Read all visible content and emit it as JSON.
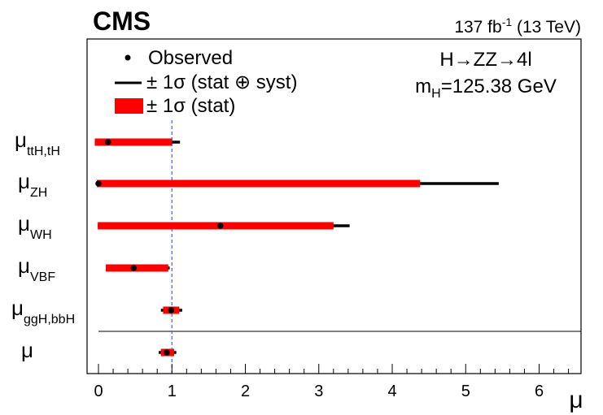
{
  "header": {
    "experiment": "CMS",
    "lumi_value": "137 fb",
    "lumi_exp": "-1",
    "lumi_energy": "(13 TeV)"
  },
  "annotation": {
    "process": "H→ZZ→4l",
    "mass_prefix": "m",
    "mass_sub": "H",
    "mass_value": "=125.38 GeV"
  },
  "legend": {
    "observed": "Observed",
    "total": "± 1σ (stat ⊕ syst)",
    "stat": "± 1σ (stat)"
  },
  "axis": {
    "xlabel": "μ",
    "xticks": [
      "0",
      "1",
      "2",
      "3",
      "4",
      "5",
      "6"
    ]
  },
  "chart_data": {
    "type": "scatter",
    "title": "",
    "xlabel": "μ",
    "xlim": [
      -0.05,
      6.55
    ],
    "reference_line": 1.0,
    "grid": false,
    "legend_position": "top-left",
    "colors": {
      "stat": "#ff0000",
      "total": "#000000",
      "observed": "#000000",
      "reference": "#3366ff"
    },
    "points": [
      {
        "label": "μ",
        "sub": "ttH,tH",
        "value": 0.13,
        "tot_lo": -0.05,
        "tot_hi": 1.11,
        "stat_lo": -0.05,
        "stat_hi": 1.0
      },
      {
        "label": "μ",
        "sub": "ZH",
        "value": 0.0,
        "tot_lo": -0.02,
        "tot_hi": 5.45,
        "stat_lo": -0.02,
        "stat_hi": 4.38
      },
      {
        "label": "μ",
        "sub": "WH",
        "value": 1.66,
        "tot_lo": -0.01,
        "tot_hi": 3.42,
        "stat_lo": -0.01,
        "stat_hi": 3.2
      },
      {
        "label": "μ",
        "sub": "VBF",
        "value": 0.48,
        "tot_lo": 0.1,
        "tot_hi": 0.97,
        "stat_lo": 0.1,
        "stat_hi": 0.95
      },
      {
        "label": "μ",
        "sub": "ggH,bbH",
        "value": 0.99,
        "tot_lo": 0.85,
        "tot_hi": 1.14,
        "stat_lo": 0.88,
        "stat_hi": 1.1
      },
      {
        "label": "μ",
        "sub": "",
        "value": 0.93,
        "tot_lo": 0.82,
        "tot_hi": 1.06,
        "stat_lo": 0.85,
        "stat_hi": 1.03
      }
    ]
  }
}
